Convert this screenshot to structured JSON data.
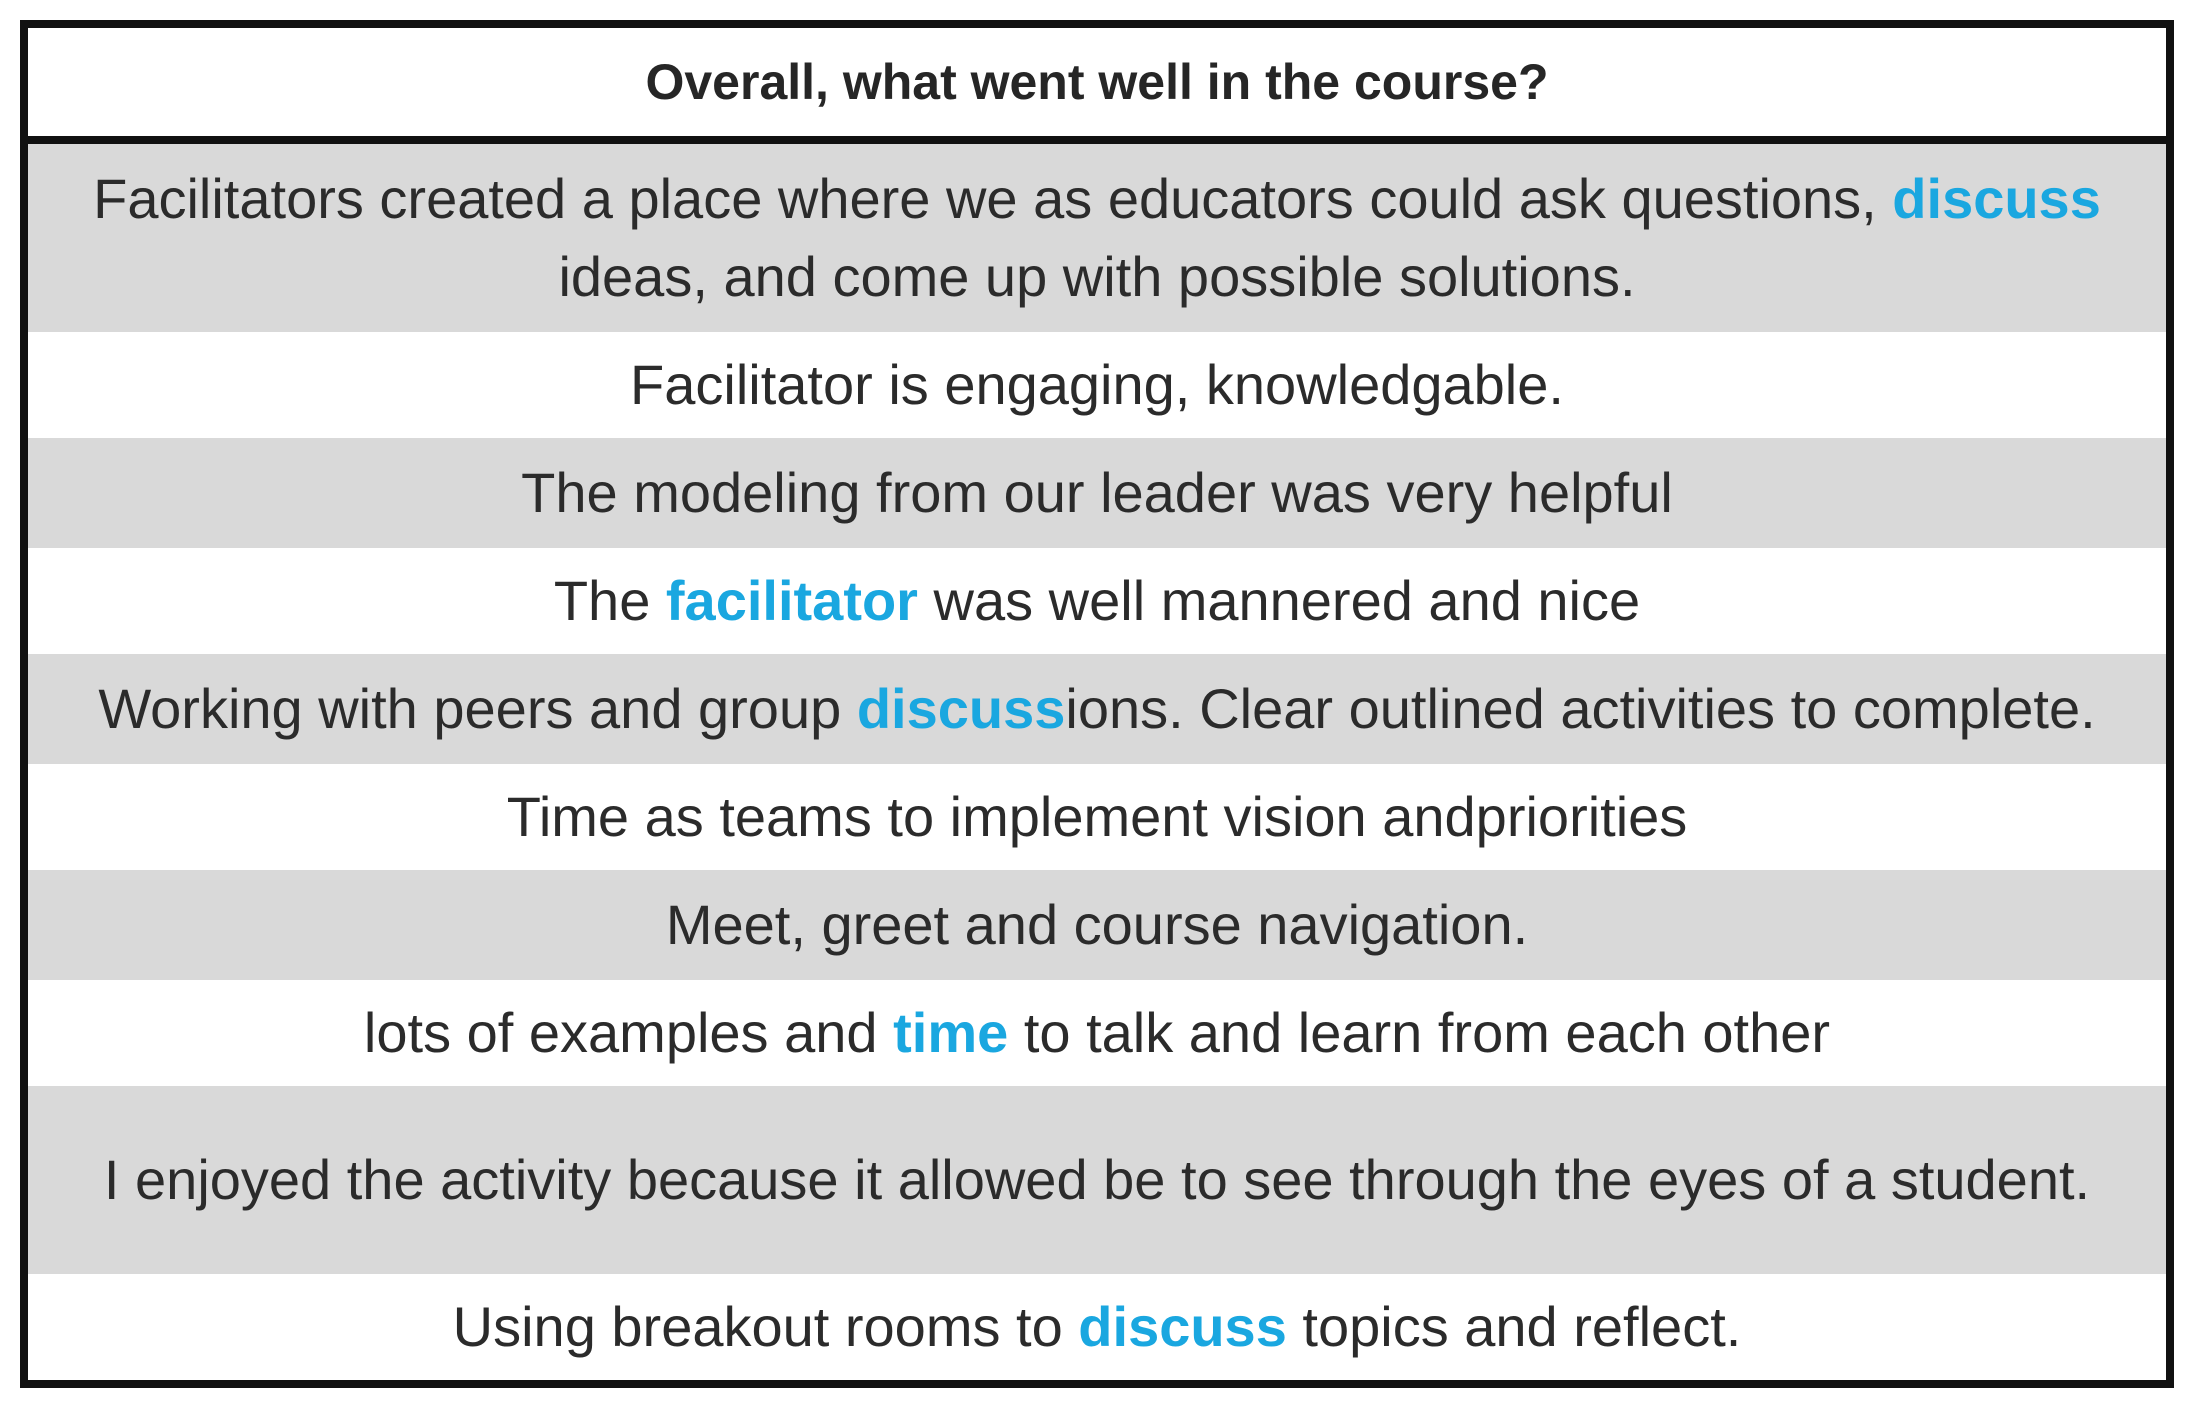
{
  "title": "Overall, what went well in the course?",
  "highlight_color": "#1aa7e0",
  "rows": [
    {
      "shaded": true,
      "segments": [
        {
          "text": "Facilitators created a place where we as educators could ask questions, ",
          "hl": false
        },
        {
          "text": "discuss",
          "hl": true
        },
        {
          "text": " ideas, and come up with possible solutions.",
          "hl": false
        }
      ]
    },
    {
      "shaded": false,
      "segments": [
        {
          "text": "Facilitator is engaging, knowledgable.",
          "hl": false
        }
      ]
    },
    {
      "shaded": true,
      "segments": [
        {
          "text": "The modeling from our leader was very helpful",
          "hl": false
        }
      ]
    },
    {
      "shaded": false,
      "segments": [
        {
          "text": "The ",
          "hl": false
        },
        {
          "text": "facilitator",
          "hl": true
        },
        {
          "text": " was well mannered and nice",
          "hl": false
        }
      ]
    },
    {
      "shaded": true,
      "segments": [
        {
          "text": "Working with peers and group ",
          "hl": false
        },
        {
          "text": "discuss",
          "hl": true
        },
        {
          "text": "ions. Clear outlined activities to complete.",
          "hl": false
        }
      ]
    },
    {
      "shaded": false,
      "segments": [
        {
          "text": "Time as teams to implement vision andpriorities",
          "hl": false
        }
      ]
    },
    {
      "shaded": true,
      "segments": [
        {
          "text": "Meet, greet and course navigation.",
          "hl": false
        }
      ]
    },
    {
      "shaded": false,
      "segments": [
        {
          "text": "lots of examples and ",
          "hl": false
        },
        {
          "text": "time",
          "hl": true
        },
        {
          "text": " to talk and learn from each other",
          "hl": false
        }
      ]
    },
    {
      "shaded": true,
      "segments": [
        {
          "text": "I enjoyed the activity because it allowed be to see through the eyes of a student.",
          "hl": false
        }
      ]
    },
    {
      "shaded": false,
      "segments": [
        {
          "text": "Using breakout rooms to ",
          "hl": false
        },
        {
          "text": "discuss",
          "hl": true
        },
        {
          "text": " topics and reflect.",
          "hl": false
        }
      ]
    }
  ]
}
